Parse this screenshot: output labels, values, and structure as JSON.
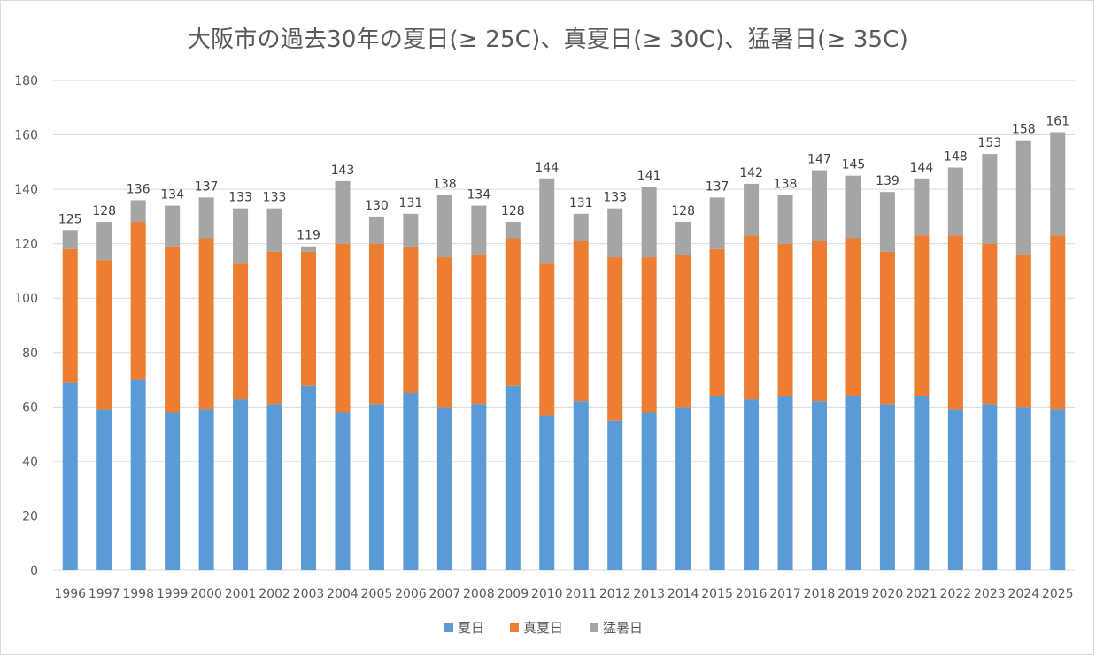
{
  "chart_data": {
    "type": "bar",
    "stacked": true,
    "title": "大阪市の過去30年の夏日(≥ 25C)、真夏日(≥ 30C)、猛暑日(≥ 35C)",
    "xlabel": "",
    "ylabel": "",
    "ylim": [
      0,
      180
    ],
    "yticks": [
      0,
      20,
      40,
      60,
      80,
      100,
      120,
      140,
      160,
      180
    ],
    "grid": true,
    "legend_position": "bottom",
    "categories": [
      "1996",
      "1997",
      "1998",
      "1999",
      "2000",
      "2001",
      "2002",
      "2003",
      "2004",
      "2005",
      "2006",
      "2007",
      "2008",
      "2009",
      "2010",
      "2011",
      "2012",
      "2013",
      "2014",
      "2015",
      "2016",
      "2017",
      "2018",
      "2019",
      "2020",
      "2021",
      "2022",
      "2023",
      "2024",
      "2025"
    ],
    "series": [
      {
        "name": "夏日",
        "color": "#5b9bd5",
        "values": [
          69,
          59,
          70,
          58,
          59,
          63,
          61,
          68,
          58,
          61,
          65,
          60,
          61,
          68,
          57,
          62,
          55,
          58,
          60,
          64,
          63,
          64,
          62,
          64,
          61,
          64,
          59,
          61,
          60,
          59
        ]
      },
      {
        "name": "真夏日",
        "color": "#ed7d31",
        "values": [
          49,
          55,
          58,
          61,
          63,
          50,
          56,
          49,
          62,
          59,
          54,
          55,
          55,
          54,
          56,
          59,
          60,
          57,
          56,
          54,
          60,
          56,
          59,
          58,
          56,
          59,
          64,
          59,
          56,
          64
        ]
      },
      {
        "name": "猛暑日",
        "color": "#a5a5a5",
        "values": [
          7,
          14,
          8,
          15,
          15,
          20,
          16,
          2,
          23,
          10,
          12,
          23,
          18,
          6,
          31,
          10,
          18,
          26,
          12,
          19,
          19,
          18,
          26,
          23,
          22,
          21,
          25,
          33,
          42,
          38
        ]
      }
    ],
    "totals": [
      125,
      128,
      136,
      134,
      137,
      133,
      133,
      119,
      143,
      130,
      131,
      138,
      134,
      128,
      144,
      131,
      133,
      141,
      128,
      137,
      142,
      138,
      147,
      145,
      139,
      144,
      148,
      153,
      158,
      161
    ]
  }
}
